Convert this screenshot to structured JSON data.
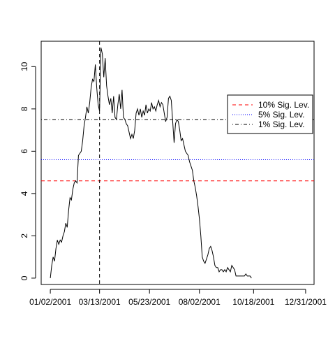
{
  "chart_data": {
    "type": "line",
    "title": "",
    "xlabel": "",
    "ylabel": "",
    "x_start": "2001-01-02",
    "x_end": "2001-12-31",
    "xlim": [
      "2000-12-20",
      "2002-01-12"
    ],
    "ylim": [
      -0.3,
      11.2
    ],
    "x_ticks": [
      {
        "date": "2001-01-02",
        "label": "01/02/2001"
      },
      {
        "date": "2001-03-13",
        "label": "03/13/2001"
      },
      {
        "date": "2001-05-23",
        "label": "05/23/2001"
      },
      {
        "date": "2001-08-02",
        "label": "08/02/2001"
      },
      {
        "date": "2001-10-18",
        "label": "10/18/2001"
      },
      {
        "date": "2001-12-31",
        "label": "12/31/2001"
      }
    ],
    "y_ticks": [
      0,
      2,
      4,
      6,
      8,
      10
    ],
    "series": [
      {
        "color": "#000000",
        "points": [
          [
            "2001-01-02",
            0.0
          ],
          [
            "2001-01-04",
            0.6
          ],
          [
            "2001-01-06",
            1.0
          ],
          [
            "2001-01-08",
            0.8
          ],
          [
            "2001-01-10",
            1.4
          ],
          [
            "2001-01-12",
            1.8
          ],
          [
            "2001-01-14",
            1.6
          ],
          [
            "2001-01-16",
            1.8
          ],
          [
            "2001-01-18",
            1.7
          ],
          [
            "2001-01-20",
            2.0
          ],
          [
            "2001-01-22",
            2.2
          ],
          [
            "2001-01-24",
            2.6
          ],
          [
            "2001-01-26",
            2.4
          ],
          [
            "2001-01-28",
            3.2
          ],
          [
            "2001-01-30",
            3.8
          ],
          [
            "2001-02-01",
            3.7
          ],
          [
            "2001-02-03",
            4.2
          ],
          [
            "2001-02-05",
            4.5
          ],
          [
            "2001-02-07",
            4.6
          ],
          [
            "2001-02-09",
            4.5
          ],
          [
            "2001-02-11",
            5.8
          ],
          [
            "2001-02-13",
            5.9
          ],
          [
            "2001-02-15",
            6.0
          ],
          [
            "2001-02-17",
            6.5
          ],
          [
            "2001-02-19",
            7.2
          ],
          [
            "2001-02-21",
            7.6
          ],
          [
            "2001-02-23",
            8.1
          ],
          [
            "2001-02-25",
            7.8
          ],
          [
            "2001-02-27",
            8.3
          ],
          [
            "2001-03-01",
            9.0
          ],
          [
            "2001-03-03",
            9.4
          ],
          [
            "2001-03-05",
            9.3
          ],
          [
            "2001-03-07",
            10.1
          ],
          [
            "2001-03-09",
            9.0
          ],
          [
            "2001-03-11",
            8.2
          ],
          [
            "2001-03-13",
            7.9
          ],
          [
            "2001-03-15",
            10.9
          ],
          [
            "2001-03-17",
            10.6
          ],
          [
            "2001-03-19",
            9.5
          ],
          [
            "2001-03-21",
            10.4
          ],
          [
            "2001-03-23",
            9.1
          ],
          [
            "2001-03-25",
            8.6
          ],
          [
            "2001-03-27",
            8.2
          ],
          [
            "2001-03-29",
            8.5
          ],
          [
            "2001-03-31",
            7.8
          ],
          [
            "2001-04-02",
            8.6
          ],
          [
            "2001-04-04",
            7.6
          ],
          [
            "2001-04-06",
            7.5
          ],
          [
            "2001-04-08",
            8.2
          ],
          [
            "2001-04-10",
            8.7
          ],
          [
            "2001-04-12",
            8.0
          ],
          [
            "2001-04-14",
            8.9
          ],
          [
            "2001-04-16",
            7.6
          ],
          [
            "2001-04-18",
            7.5
          ],
          [
            "2001-04-20",
            7.3
          ],
          [
            "2001-04-22",
            7.2
          ],
          [
            "2001-04-24",
            6.9
          ],
          [
            "2001-04-26",
            6.6
          ],
          [
            "2001-04-28",
            6.8
          ],
          [
            "2001-04-30",
            6.6
          ],
          [
            "2001-05-02",
            7.0
          ],
          [
            "2001-05-04",
            7.8
          ],
          [
            "2001-05-06",
            8.0
          ],
          [
            "2001-05-08",
            7.7
          ],
          [
            "2001-05-10",
            8.0
          ],
          [
            "2001-05-12",
            7.6
          ],
          [
            "2001-05-14",
            7.9
          ],
          [
            "2001-05-16",
            7.7
          ],
          [
            "2001-05-18",
            8.2
          ],
          [
            "2001-05-20",
            7.8
          ],
          [
            "2001-05-22",
            8.0
          ],
          [
            "2001-05-24",
            7.9
          ],
          [
            "2001-05-26",
            8.3
          ],
          [
            "2001-05-28",
            8.0
          ],
          [
            "2001-05-30",
            8.1
          ],
          [
            "2001-06-01",
            7.9
          ],
          [
            "2001-06-03",
            8.2
          ],
          [
            "2001-06-05",
            8.4
          ],
          [
            "2001-06-07",
            8.1
          ],
          [
            "2001-06-09",
            8.3
          ],
          [
            "2001-06-11",
            8.2
          ],
          [
            "2001-06-13",
            7.8
          ],
          [
            "2001-06-15",
            7.4
          ],
          [
            "2001-06-17",
            7.6
          ],
          [
            "2001-06-19",
            8.5
          ],
          [
            "2001-06-21",
            8.6
          ],
          [
            "2001-06-23",
            8.4
          ],
          [
            "2001-06-25",
            7.4
          ],
          [
            "2001-06-27",
            6.4
          ],
          [
            "2001-06-29",
            7.3
          ],
          [
            "2001-07-01",
            7.5
          ],
          [
            "2001-07-03",
            7.4
          ],
          [
            "2001-07-05",
            7.0
          ],
          [
            "2001-07-07",
            6.5
          ],
          [
            "2001-07-09",
            6.6
          ],
          [
            "2001-07-11",
            6.3
          ],
          [
            "2001-07-13",
            6.0
          ],
          [
            "2001-07-15",
            5.9
          ],
          [
            "2001-07-17",
            5.8
          ],
          [
            "2001-07-19",
            5.5
          ],
          [
            "2001-07-21",
            5.3
          ],
          [
            "2001-07-23",
            5.1
          ],
          [
            "2001-07-25",
            4.6
          ],
          [
            "2001-07-27",
            4.3
          ],
          [
            "2001-07-29",
            3.9
          ],
          [
            "2001-07-31",
            3.4
          ],
          [
            "2001-08-02",
            2.8
          ],
          [
            "2001-08-04",
            2.0
          ],
          [
            "2001-08-06",
            1.0
          ],
          [
            "2001-08-08",
            0.8
          ],
          [
            "2001-08-10",
            0.7
          ],
          [
            "2001-08-12",
            0.9
          ],
          [
            "2001-08-14",
            1.1
          ],
          [
            "2001-08-16",
            1.4
          ],
          [
            "2001-08-18",
            1.5
          ],
          [
            "2001-08-20",
            1.3
          ],
          [
            "2001-08-22",
            1.0
          ],
          [
            "2001-08-24",
            0.6
          ],
          [
            "2001-08-26",
            0.5
          ],
          [
            "2001-08-28",
            0.5
          ],
          [
            "2001-08-30",
            0.3
          ],
          [
            "2001-09-01",
            0.4
          ],
          [
            "2001-09-03",
            0.4
          ],
          [
            "2001-09-05",
            0.3
          ],
          [
            "2001-09-07",
            0.4
          ],
          [
            "2001-09-09",
            0.3
          ],
          [
            "2001-09-11",
            0.5
          ],
          [
            "2001-09-13",
            0.4
          ],
          [
            "2001-09-15",
            0.3
          ],
          [
            "2001-09-17",
            0.6
          ],
          [
            "2001-09-19",
            0.5
          ],
          [
            "2001-09-21",
            0.4
          ],
          [
            "2001-09-23",
            0.1
          ],
          [
            "2001-09-25",
            0.1
          ],
          [
            "2001-09-27",
            0.1
          ],
          [
            "2001-09-29",
            0.1
          ],
          [
            "2001-10-01",
            0.1
          ],
          [
            "2001-10-03",
            0.1
          ],
          [
            "2001-10-05",
            0.1
          ],
          [
            "2001-10-07",
            0.2
          ],
          [
            "2001-10-09",
            0.1
          ],
          [
            "2001-10-11",
            0.1
          ],
          [
            "2001-10-13",
            0.1
          ],
          [
            "2001-10-15",
            0.0
          ]
        ]
      }
    ],
    "vertical_line": {
      "date": "2001-03-13",
      "style": "dashed",
      "color": "#000000"
    },
    "reference_lines": [
      {
        "label": "10% Sig. Lev.",
        "y": 4.6,
        "color": "#ff0000",
        "dash": "dashed"
      },
      {
        "label": "5% Sig. Lev.",
        "y": 5.6,
        "color": "#0000ff",
        "dash": "dotted"
      },
      {
        "label": "1% Sig. Lev.",
        "y": 7.5,
        "color": "#000000",
        "dash": "dotdash"
      }
    ],
    "grid": false,
    "legend_position": "top-right"
  }
}
